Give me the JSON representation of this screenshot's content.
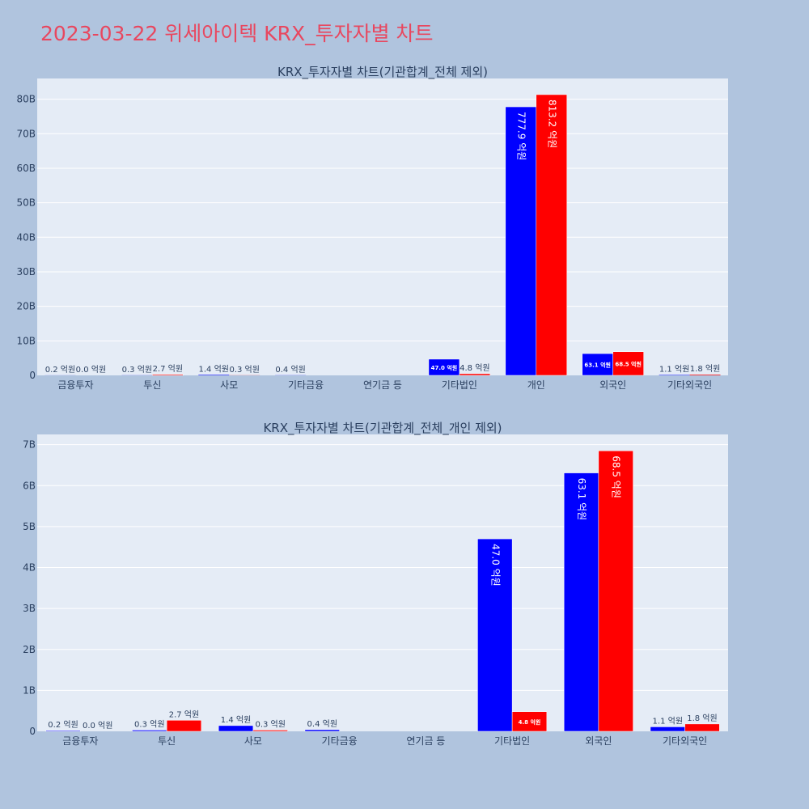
{
  "title": "2023-03-22 위세아이텍 KRX_투자자별 차트",
  "colors": {
    "buy": "#0000ff",
    "sell": "#ff0000",
    "plot_bg": "#e5ecf6",
    "page_bg": "#b0c4de",
    "title": "#e8475f"
  },
  "chart_data": [
    {
      "type": "bar",
      "title": "KRX_투자자별 차트(기관합계_전체 제외)",
      "categories": [
        "금융투자",
        "투신",
        "사모",
        "기타금융",
        "연기금 등",
        "기타법인",
        "개인",
        "외국인",
        "기타외국인"
      ],
      "series": [
        {
          "color": "#0000ff",
          "values": [
            0.02,
            0.03,
            0.14,
            0.04,
            0,
            4.7,
            77.79,
            6.31,
            0.11
          ],
          "labels": [
            "0.2 억원",
            "0.3 억원",
            "1.4 억원",
            "0.4 억원",
            "",
            "47.0 억원",
            "777.9 억원",
            "63.1 억원",
            "1.1 억원"
          ]
        },
        {
          "color": "#ff0000",
          "values": [
            0.0,
            0.27,
            0.03,
            0,
            0,
            0.48,
            81.32,
            6.85,
            0.18
          ],
          "labels": [
            "0.0 억원",
            "2.7 억원",
            "0.3 억원",
            "",
            "",
            "4.8 억원",
            "813.2 억원",
            "68.5 억원",
            "1.8 억원"
          ]
        }
      ],
      "ylim": [
        0,
        86
      ],
      "yticks": [
        0,
        10,
        20,
        30,
        40,
        50,
        60,
        70,
        80
      ],
      "ytick_labels": [
        "0",
        "10B",
        "20B",
        "30B",
        "40B",
        "50B",
        "60B",
        "70B",
        "80B"
      ],
      "grid": true
    },
    {
      "type": "bar",
      "title": "KRX_투자자별 차트(기관합계_전체_개인 제외)",
      "categories": [
        "금융투자",
        "투신",
        "사모",
        "기타금융",
        "연기금 등",
        "기타법인",
        "외국인",
        "기타외국인"
      ],
      "series": [
        {
          "color": "#0000ff",
          "values": [
            0.02,
            0.03,
            0.14,
            0.04,
            0,
            4.7,
            6.31,
            0.11
          ],
          "labels": [
            "0.2 억원",
            "0.3 억원",
            "1.4 억원",
            "0.4 억원",
            "",
            "47.0 억원",
            "63.1 억원",
            "1.1 억원"
          ]
        },
        {
          "color": "#ff0000",
          "values": [
            0.0,
            0.27,
            0.03,
            0,
            0,
            0.48,
            6.85,
            0.18
          ],
          "labels": [
            "0.0 억원",
            "2.7 억원",
            "0.3 억원",
            "",
            "",
            "4.8 억원",
            "68.5 억원",
            "1.8 억원"
          ]
        }
      ],
      "ylim": [
        0,
        7.25
      ],
      "yticks": [
        0,
        1,
        2,
        3,
        4,
        5,
        6,
        7
      ],
      "ytick_labels": [
        "0",
        "1B",
        "2B",
        "3B",
        "4B",
        "5B",
        "6B",
        "7B"
      ],
      "grid": true
    }
  ]
}
